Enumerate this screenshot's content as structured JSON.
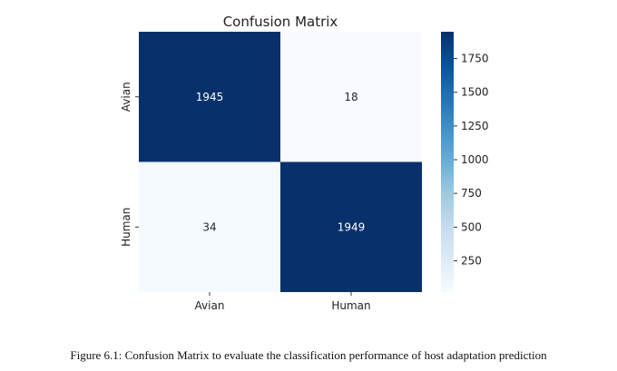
{
  "chart_data": {
    "type": "heatmap",
    "title": "Confusion Matrix",
    "xlabel": "",
    "ylabel": "",
    "x_categories": [
      "Avian",
      "Human"
    ],
    "y_categories": [
      "Avian",
      "Human"
    ],
    "values": [
      [
        1945,
        18
      ],
      [
        34,
        1949
      ]
    ],
    "colorbar": {
      "min": 18,
      "max": 1949,
      "ticks": [
        250,
        500,
        750,
        1000,
        1250,
        1500,
        1750
      ]
    },
    "colormap": "Blues",
    "colors": {
      "low": "#f7fbff",
      "high": "#08306b"
    },
    "grid": false
  },
  "caption": "Figure 6.1: Confusion Matrix to evaluate the classification performance of host adaptation prediction"
}
